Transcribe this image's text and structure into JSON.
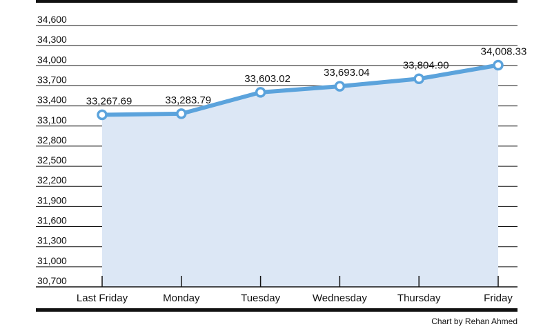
{
  "chart_data": {
    "type": "area",
    "categories": [
      "Last Friday",
      "Monday",
      "Tuesday",
      "Wednesday",
      "Thursday",
      "Friday"
    ],
    "values": [
      33267.69,
      33283.79,
      33603.02,
      33693.04,
      33804.9,
      34008.33
    ],
    "data_labels": [
      "33,267.69",
      "33,283.79",
      "33,603.02",
      "33,693.04",
      "33,804.90",
      "34,008.33"
    ],
    "ylim": [
      30700,
      34600
    ],
    "yticks": [
      34600,
      34300,
      34000,
      33700,
      33400,
      33100,
      32800,
      32500,
      32200,
      31900,
      31600,
      31300,
      31000,
      30700
    ],
    "ytick_labels": [
      "34,600",
      "34,300",
      "34,000",
      "33,700",
      "33,400",
      "33,100",
      "32,800",
      "32,500",
      "32,200",
      "31,900",
      "31,600",
      "31,300",
      "31,000",
      "30,700"
    ],
    "grid": true,
    "colors": {
      "line": "#5ba3dc",
      "fill": "#dce7f5",
      "grid": "#111111"
    }
  },
  "credit": "Chart by Rehan Ahmed"
}
